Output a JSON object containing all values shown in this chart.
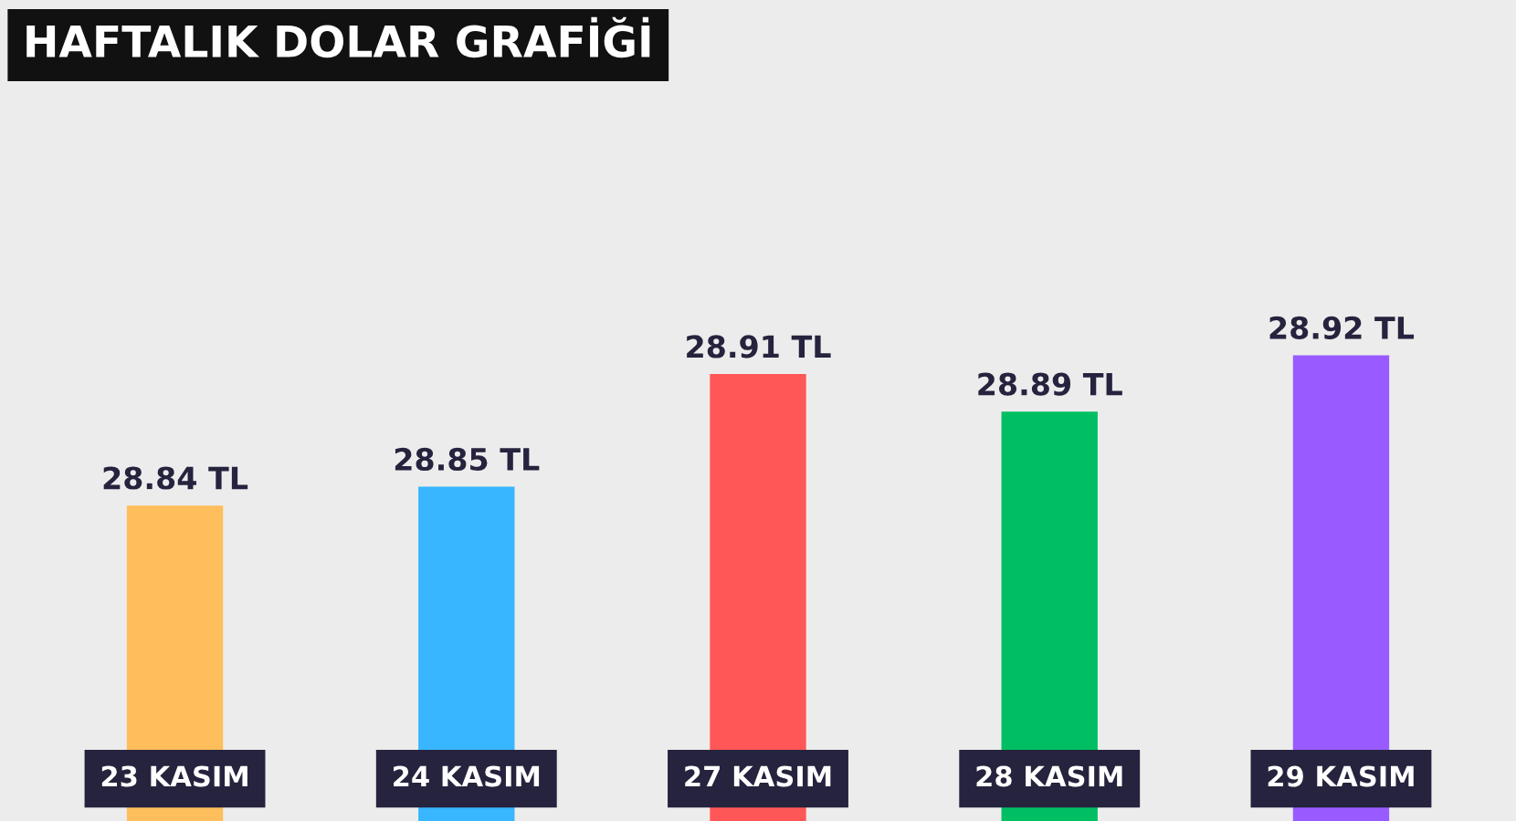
{
  "chart_data": {
    "type": "bar",
    "title": "HAFTALIK DOLAR GRAFİĞİ",
    "categories": [
      "23 KASIM",
      "24 KASIM",
      "27 KASIM",
      "28 KASIM",
      "29 KASIM"
    ],
    "values": [
      28.84,
      28.85,
      28.91,
      28.89,
      28.92
    ],
    "colors": [
      "#ffbe5c",
      "#38b6ff",
      "#ff5757",
      "#00bf63",
      "#995bff"
    ],
    "value_labels": [
      "28.84 TL",
      "28.85 TL",
      "28.91 TL",
      "28.89 TL",
      "28.92 TL"
    ],
    "tick_labels": "x",
    "grid": false,
    "legend": false
  }
}
